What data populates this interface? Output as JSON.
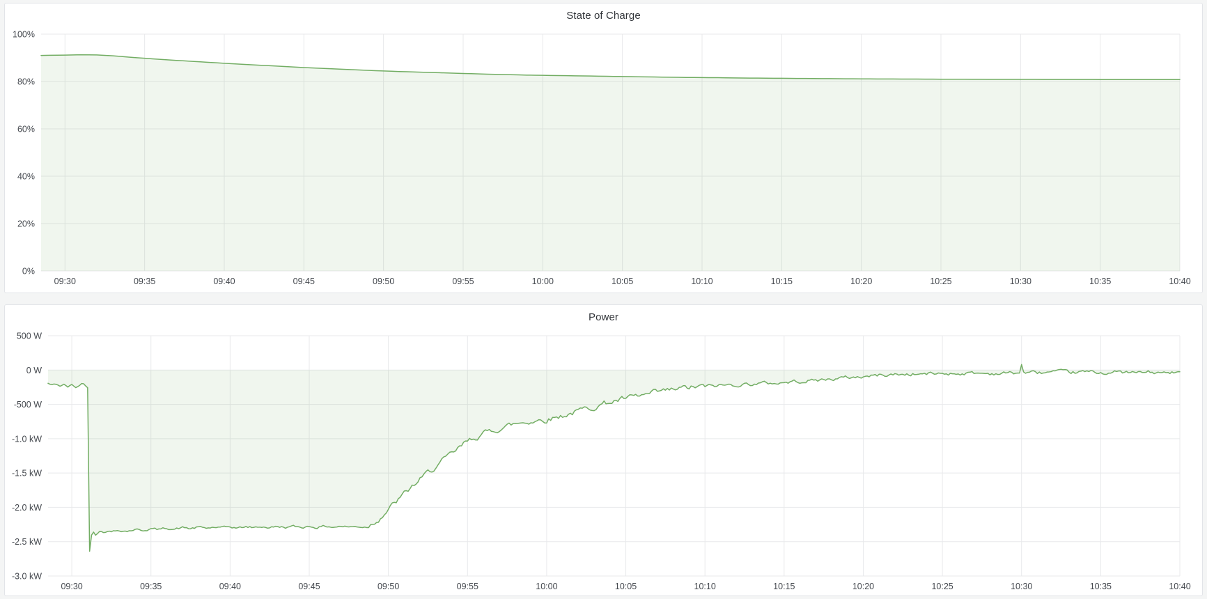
{
  "page": {
    "background": "#f4f5f5",
    "panel_background": "#ffffff",
    "panel_border_color": "#e2e4e8",
    "title_color": "#32353a",
    "axis_text_color": "#44484e",
    "grid_color": "#e8e9eb"
  },
  "chart_data": [
    {
      "type": "area",
      "title": "State of Charge",
      "legend_position": "none",
      "grid": true,
      "line_color": "#72ad63",
      "fill_opacity": 0.11,
      "ylim": [
        0,
        100
      ],
      "y_ticks": [
        {
          "value": 100,
          "label": "100%"
        },
        {
          "value": 80,
          "label": "80%"
        },
        {
          "value": 60,
          "label": "60%"
        },
        {
          "value": 40,
          "label": "40%"
        },
        {
          "value": 20,
          "label": "20%"
        },
        {
          "value": 0,
          "label": "0%"
        }
      ],
      "x_domain_minutes": [
        -1.5,
        70
      ],
      "x_tick_minutes": [
        0,
        5,
        10,
        15,
        20,
        25,
        30,
        35,
        40,
        45,
        50,
        55,
        60,
        65,
        70
      ],
      "x_tick_labels": [
        "09:30",
        "09:35",
        "09:40",
        "09:45",
        "09:50",
        "09:55",
        "10:00",
        "10:05",
        "10:10",
        "10:15",
        "10:20",
        "10:25",
        "10:30",
        "10:35",
        "10:40"
      ],
      "fill_baseline_value": 0,
      "sample_step_minutes": 0.5,
      "noise_seed": 7,
      "noise_segments": [],
      "series": [
        {
          "name": "State of Charge (%)",
          "points": [
            [
              -1.5,
              91.0
            ],
            [
              0,
              91.15
            ],
            [
              1,
              91.3
            ],
            [
              2,
              91.2
            ],
            [
              3,
              90.85
            ],
            [
              4,
              90.3
            ],
            [
              5,
              89.8
            ],
            [
              6,
              89.35
            ],
            [
              7,
              88.9
            ],
            [
              8,
              88.5
            ],
            [
              9,
              88.1
            ],
            [
              10,
              87.7
            ],
            [
              11,
              87.3
            ],
            [
              12,
              86.95
            ],
            [
              13,
              86.6
            ],
            [
              14,
              86.25
            ],
            [
              15,
              85.9
            ],
            [
              16,
              85.6
            ],
            [
              17,
              85.3
            ],
            [
              18,
              85.0
            ],
            [
              19,
              84.7
            ],
            [
              20,
              84.45
            ],
            [
              21,
              84.2
            ],
            [
              22,
              84.0
            ],
            [
              23,
              83.8
            ],
            [
              24,
              83.6
            ],
            [
              25,
              83.4
            ],
            [
              26,
              83.2
            ],
            [
              27,
              83.0
            ],
            [
              28,
              82.85
            ],
            [
              29,
              82.7
            ],
            [
              30,
              82.6
            ],
            [
              31,
              82.5
            ],
            [
              32,
              82.4
            ],
            [
              33,
              82.3
            ],
            [
              34,
              82.2
            ],
            [
              35,
              82.1
            ],
            [
              36,
              82.0
            ],
            [
              37,
              81.9
            ],
            [
              38,
              81.8
            ],
            [
              39,
              81.7
            ],
            [
              40,
              81.65
            ],
            [
              41,
              81.6
            ],
            [
              42,
              81.5
            ],
            [
              43,
              81.45
            ],
            [
              44,
              81.4
            ],
            [
              45,
              81.35
            ],
            [
              46,
              81.3
            ],
            [
              47,
              81.25
            ],
            [
              48,
              81.2
            ],
            [
              49,
              81.15
            ],
            [
              50,
              81.1
            ],
            [
              52,
              81.05
            ],
            [
              54,
              81.0
            ],
            [
              56,
              80.95
            ],
            [
              58,
              80.9
            ],
            [
              60,
              80.9
            ],
            [
              62,
              80.85
            ],
            [
              64,
              80.85
            ],
            [
              66,
              80.8
            ],
            [
              68,
              80.8
            ],
            [
              70,
              80.8
            ]
          ]
        }
      ]
    },
    {
      "type": "area",
      "title": "Power",
      "legend_position": "none",
      "grid": true,
      "line_color": "#72ad63",
      "fill_opacity": 0.11,
      "ylim": [
        -3000,
        500
      ],
      "y_ticks": [
        {
          "value": 500,
          "label": "500 W"
        },
        {
          "value": 0,
          "label": "0 W"
        },
        {
          "value": -500,
          "label": "-500 W"
        },
        {
          "value": -1000,
          "label": "-1.0 kW"
        },
        {
          "value": -1500,
          "label": "-1.5 kW"
        },
        {
          "value": -2000,
          "label": "-2.0 kW"
        },
        {
          "value": -2500,
          "label": "-2.5 kW"
        },
        {
          "value": -3000,
          "label": "-3.0 kW"
        }
      ],
      "x_domain_minutes": [
        -1.5,
        70
      ],
      "x_tick_minutes": [
        0,
        5,
        10,
        15,
        20,
        25,
        30,
        35,
        40,
        45,
        50,
        55,
        60,
        65,
        70
      ],
      "x_tick_labels": [
        "09:30",
        "09:35",
        "09:40",
        "09:45",
        "09:50",
        "09:55",
        "10:00",
        "10:05",
        "10:10",
        "10:15",
        "10:20",
        "10:25",
        "10:30",
        "10:35",
        "10:40"
      ],
      "fill_baseline_value": 0,
      "sample_step_minutes": 0.125,
      "noise_seed": 42,
      "noise_segments": [
        {
          "to_minute": 1.0,
          "amp": 30
        },
        {
          "to_minute": 18.5,
          "amp": 35
        },
        {
          "to_minute": 40,
          "amp": 90
        },
        {
          "to_minute": 70,
          "amp": 55
        }
      ],
      "series": [
        {
          "name": "Power (W)",
          "points": [
            [
              -1.5,
              -195
            ],
            [
              -1.25,
              -220
            ],
            [
              -1.0,
              -205
            ],
            [
              -0.75,
              -230
            ],
            [
              -0.5,
              -215
            ],
            [
              -0.25,
              -245
            ],
            [
              0,
              -220
            ],
            [
              0.25,
              -250
            ],
            [
              0.5,
              -225
            ],
            [
              0.625,
              -200
            ],
            [
              0.75,
              -190
            ],
            [
              0.875,
              -225
            ],
            [
              1.0,
              -262
            ],
            [
              1.125,
              -2630
            ],
            [
              1.25,
              -2400
            ],
            [
              1.375,
              -2345
            ],
            [
              1.5,
              -2390
            ],
            [
              1.75,
              -2330
            ],
            [
              2,
              -2365
            ],
            [
              2.25,
              -2335
            ],
            [
              2.5,
              -2355
            ],
            [
              3,
              -2330
            ],
            [
              3.5,
              -2345
            ],
            [
              4,
              -2320
            ],
            [
              4.5,
              -2335
            ],
            [
              5,
              -2310
            ],
            [
              5.5,
              -2325
            ],
            [
              6,
              -2300
            ],
            [
              6.5,
              -2315
            ],
            [
              7,
              -2295
            ],
            [
              7.5,
              -2310
            ],
            [
              8,
              -2290
            ],
            [
              8.5,
              -2305
            ],
            [
              9,
              -2290
            ],
            [
              9.5,
              -2300
            ],
            [
              10,
              -2285
            ],
            [
              10.5,
              -2300
            ],
            [
              11,
              -2285
            ],
            [
              11.5,
              -2295
            ],
            [
              12,
              -2280
            ],
            [
              12.5,
              -2295
            ],
            [
              13,
              -2280
            ],
            [
              13.5,
              -2290
            ],
            [
              14,
              -2280
            ],
            [
              14.5,
              -2290
            ],
            [
              15,
              -2275
            ],
            [
              15.5,
              -2290
            ],
            [
              16,
              -2275
            ],
            [
              16.5,
              -2285
            ],
            [
              17,
              -2275
            ],
            [
              17.5,
              -2285
            ],
            [
              18,
              -2280
            ],
            [
              18.5,
              -2285
            ],
            [
              19,
              -2230
            ],
            [
              19.5,
              -2140
            ],
            [
              20,
              -2030
            ],
            [
              20.5,
              -1920
            ],
            [
              21,
              -1810
            ],
            [
              21.5,
              -1700
            ],
            [
              22,
              -1600
            ],
            [
              22.5,
              -1500
            ],
            [
              23,
              -1405
            ],
            [
              23.5,
              -1315
            ],
            [
              24,
              -1230
            ],
            [
              24.5,
              -1135
            ],
            [
              25,
              -1040
            ],
            [
              25.5,
              -975
            ],
            [
              26,
              -930
            ],
            [
              26.5,
              -885
            ],
            [
              27,
              -850
            ],
            [
              27.5,
              -815
            ],
            [
              28,
              -785
            ],
            [
              28.5,
              -760
            ],
            [
              29,
              -745
            ],
            [
              29.5,
              -730
            ],
            [
              30,
              -715
            ],
            [
              30.5,
              -690
            ],
            [
              31,
              -660
            ],
            [
              31.5,
              -630
            ],
            [
              32,
              -600
            ],
            [
              32.5,
              -565
            ],
            [
              33,
              -530
            ],
            [
              33.5,
              -495
            ],
            [
              34,
              -465
            ],
            [
              34.5,
              -440
            ],
            [
              35,
              -420
            ],
            [
              35.5,
              -400
            ],
            [
              36,
              -380
            ],
            [
              36.5,
              -355
            ],
            [
              37,
              -330
            ],
            [
              37.5,
              -310
            ],
            [
              38,
              -290
            ],
            [
              38.5,
              -272
            ],
            [
              39,
              -258
            ],
            [
              39.5,
              -248
            ],
            [
              40,
              -240
            ],
            [
              41,
              -225
            ],
            [
              42,
              -212
            ],
            [
              43,
              -200
            ],
            [
              44,
              -192
            ],
            [
              45,
              -183
            ],
            [
              46,
              -160
            ],
            [
              47,
              -150
            ],
            [
              48,
              -130
            ],
            [
              49,
              -110
            ],
            [
              50,
              -95
            ],
            [
              51,
              -75
            ],
            [
              52,
              -65
            ],
            [
              53,
              -60
            ],
            [
              54,
              -55
            ],
            [
              55,
              -50
            ],
            [
              56,
              -48
            ],
            [
              57,
              -45
            ],
            [
              58,
              -50
            ],
            [
              59,
              -45
            ],
            [
              59.875,
              -40
            ],
            [
              60,
              85
            ],
            [
              60.125,
              -35
            ],
            [
              61,
              -40
            ],
            [
              62,
              -30
            ],
            [
              63,
              -40
            ],
            [
              64,
              -28
            ],
            [
              65,
              -38
            ],
            [
              66,
              -30
            ],
            [
              67,
              -42
            ],
            [
              68,
              -32
            ],
            [
              69,
              -45
            ],
            [
              70,
              -35
            ]
          ]
        }
      ]
    }
  ]
}
